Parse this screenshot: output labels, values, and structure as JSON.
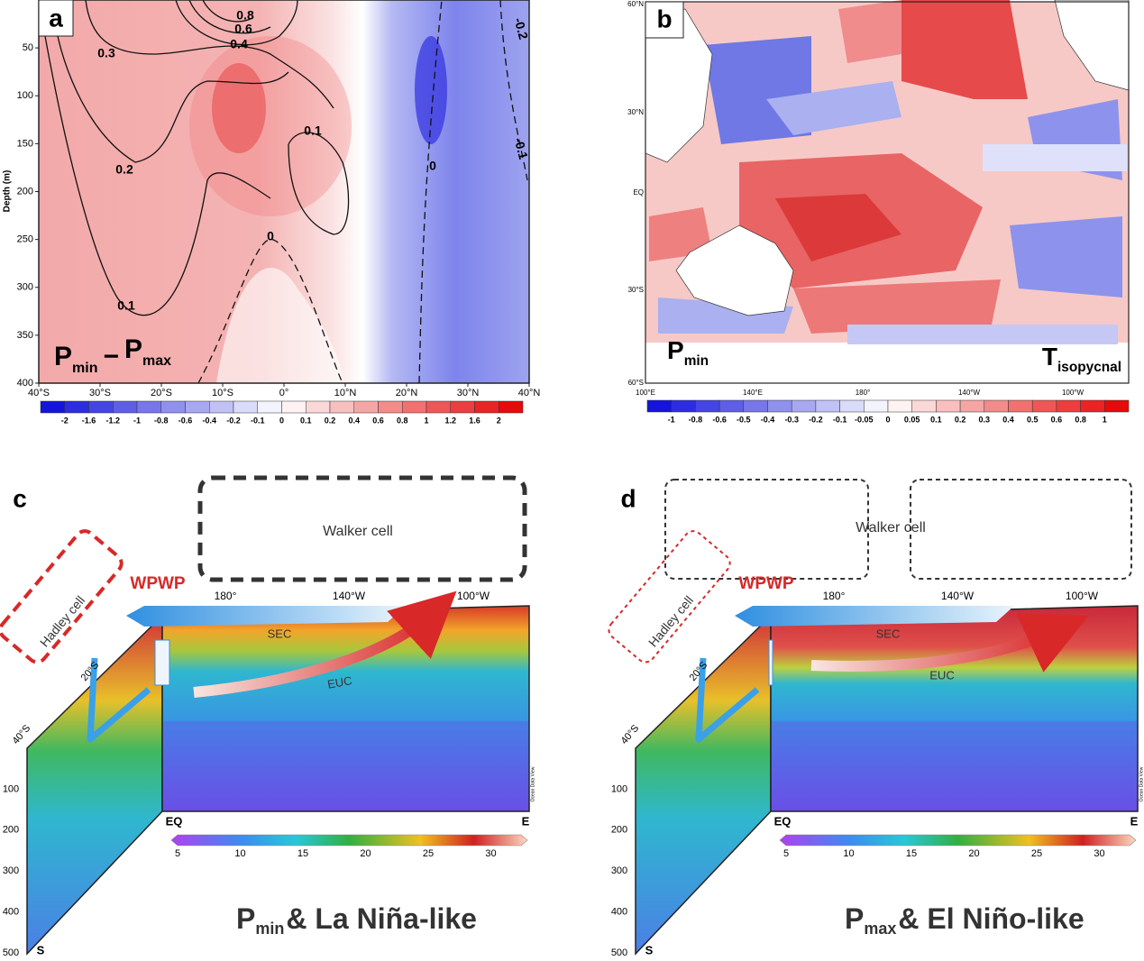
{
  "panel_a": {
    "label": "a",
    "y_axis_title": "Depth (m)",
    "yticks": [
      50,
      100,
      150,
      200,
      250,
      300,
      350,
      400
    ],
    "xticks": [
      "40°S",
      "30°S",
      "20°S",
      "10°S",
      "0°",
      "10°N",
      "20°N",
      "30°N",
      "40°N"
    ],
    "contour_labels": [
      "0.8",
      "0.6",
      "0.4",
      "0.3",
      "0.2",
      "0.1",
      "0.1",
      "0",
      "0",
      "-0.2",
      "-0.1"
    ],
    "formula": {
      "p1": "P",
      "s1": "min",
      "op": "−",
      "p2": "P",
      "s2": "max"
    },
    "colorbar": [
      -2,
      -1.6,
      -1.2,
      -1,
      -0.8,
      -0.6,
      -0.4,
      -0.2,
      -0.1,
      0,
      0.1,
      0.2,
      0.4,
      0.6,
      0.8,
      1,
      1.2,
      1.6,
      2
    ]
  },
  "panel_b": {
    "label": "b",
    "lat_ticks": [
      "60°N",
      "30°N",
      "EQ",
      "30°S",
      "60°S"
    ],
    "lon_ticks": [
      "100°E",
      "140°E",
      "180°",
      "140°W",
      "100°W"
    ],
    "title": {
      "p": "P",
      "s": "min"
    },
    "field": {
      "p": "T",
      "s": "isopycnal"
    },
    "colorbar": [
      -1,
      -0.8,
      -0.6,
      -0.5,
      -0.4,
      -0.3,
      -0.2,
      -0.1,
      -0.05,
      0,
      0.05,
      0.1,
      0.2,
      0.3,
      0.4,
      0.5,
      0.6,
      0.8,
      1
    ]
  },
  "panel_c": {
    "label": "c",
    "walker": "Walker cell",
    "hadley": "Hadley cell",
    "wpwp": "WPWP",
    "lon_ticks": [
      "180°",
      "140°W",
      "100°W"
    ],
    "sec": "SEC",
    "euc": "EUC",
    "lat_ticks": [
      "20°S",
      "40°S"
    ],
    "depth_ticks": [
      100,
      200,
      300,
      400,
      500
    ],
    "south": "S",
    "eq": "EQ",
    "east": "E",
    "colorbar": [
      5,
      10,
      15,
      20,
      25,
      30
    ],
    "credit": "Ocean Data View",
    "caption": {
      "p": "P",
      "s": "min",
      "rest": "& La Niña-like"
    }
  },
  "panel_d": {
    "label": "d",
    "walker": "Walker cell",
    "hadley": "Hadley cell",
    "wpwp": "WPWP",
    "lon_ticks": [
      "180°",
      "140°W",
      "100°W"
    ],
    "sec": "SEC",
    "euc": "EUC",
    "lat_ticks": [
      "20°S",
      "40°S"
    ],
    "depth_ticks": [
      100,
      200,
      300,
      400,
      500
    ],
    "south": "S",
    "eq": "EQ",
    "east": "E",
    "colorbar": [
      5,
      10,
      15,
      20,
      25,
      30
    ],
    "credit": "Ocean Data View",
    "caption": {
      "p": "P",
      "s": "max",
      "rest": "& El Niño-like"
    }
  }
}
